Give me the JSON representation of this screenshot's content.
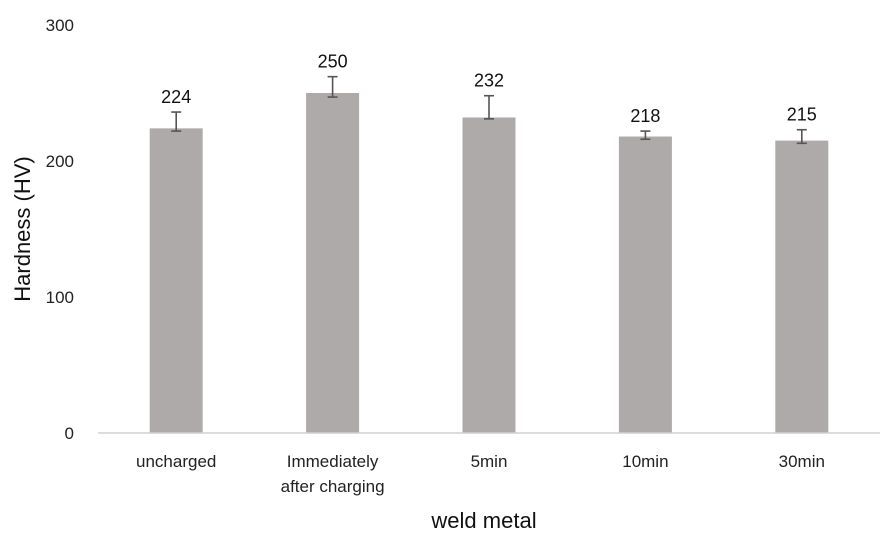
{
  "chart_data": {
    "type": "bar",
    "title": "",
    "xlabel": "weld metal",
    "ylabel": "Hardness (HV)",
    "ylim": [
      0,
      300
    ],
    "yticks": [
      0,
      100,
      200,
      300
    ],
    "categories": [
      [
        "uncharged"
      ],
      [
        "Immediately",
        "after charging"
      ],
      [
        "5min"
      ],
      [
        "10min"
      ],
      [
        "30min"
      ]
    ],
    "values": [
      224,
      250,
      232,
      218,
      215
    ],
    "error_low": [
      222,
      247,
      231,
      216,
      213
    ],
    "error_high": [
      236,
      262,
      248,
      222,
      223
    ],
    "data_labels": [
      "224",
      "250",
      "232",
      "218",
      "215"
    ],
    "grid": false,
    "legend": "none",
    "bar_color": "#aeaaaa",
    "error_bar_color": "#555555"
  }
}
